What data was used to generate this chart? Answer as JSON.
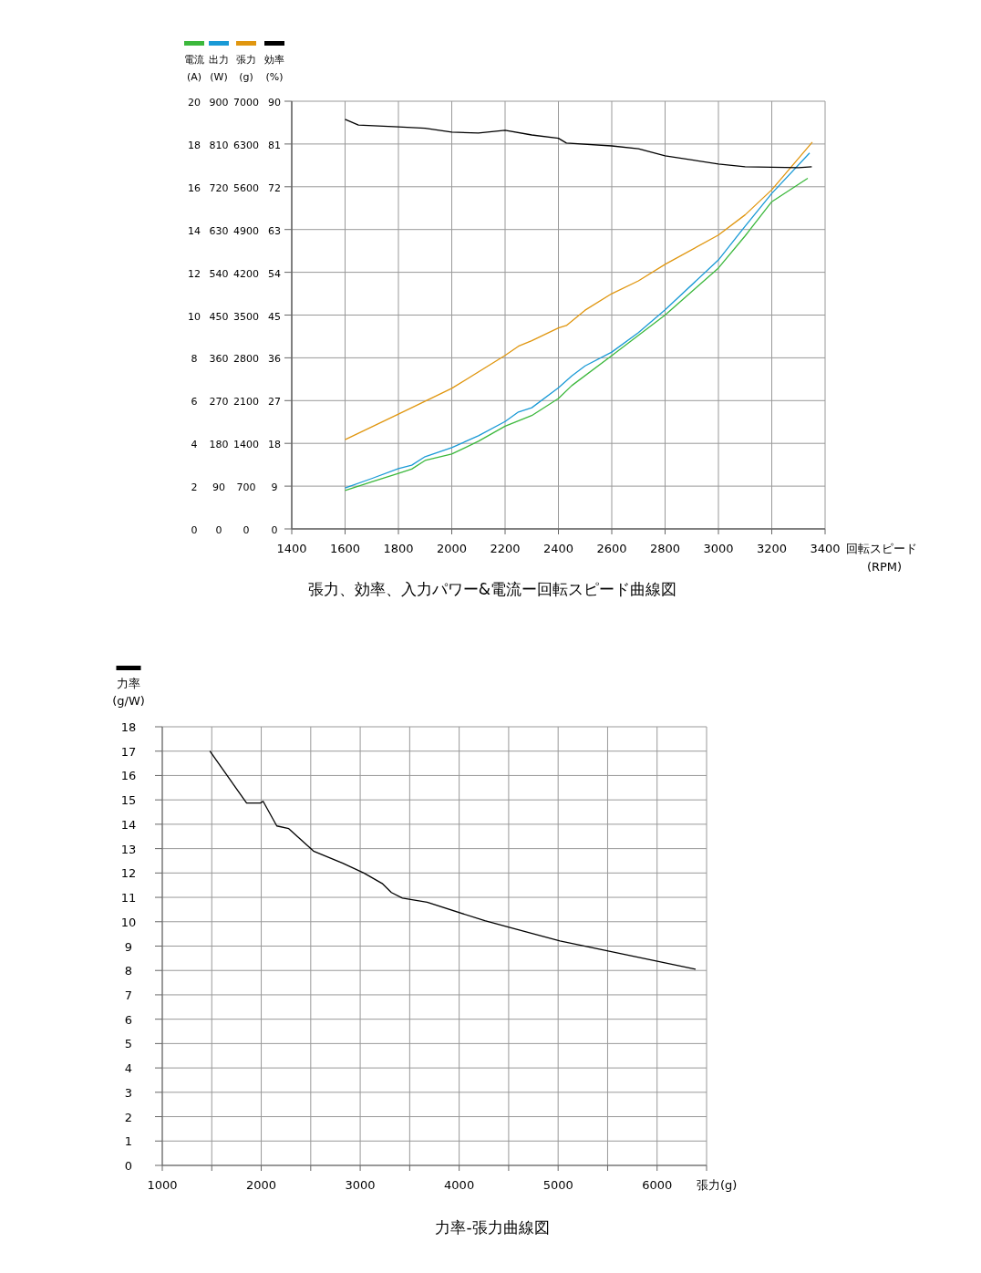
{
  "chart_data": [
    {
      "type": "line",
      "title": "張力、効率、入力パワー&電流ー回転スピード曲線図",
      "xlabel": "回転スピード\n(RPM)",
      "ylabel": "(%)",
      "y2label": "(g)",
      "y3label": "(W)",
      "xlim": [
        1400,
        3400
      ],
      "xticks": [
        1400,
        1600,
        1800,
        2000,
        2200,
        2400,
        2600,
        2800,
        3000,
        3200,
        3400
      ],
      "ylim": [
        0,
        90
      ],
      "yticks": [
        0,
        9,
        18,
        27,
        36,
        45,
        54,
        63,
        72,
        81,
        90
      ],
      "y2lim": [
        0,
        7000
      ],
      "y2ticks": [
        0,
        700,
        1400,
        2100,
        2800,
        3500,
        4200,
        4900,
        5600,
        6300,
        7000
      ],
      "y3lim": [
        0,
        900
      ],
      "y3ticks": [
        0,
        90,
        180,
        270,
        360,
        450,
        540,
        630,
        720,
        810,
        900
      ],
      "grid": true,
      "legend": "top left",
      "marker": "none",
      "line_style": "solid",
      "series": [
        {
          "name": "出力",
          "color": "#1a9ad6",
          "axis": "y3",
          "x": [
            1600,
            1700,
            1800,
            1850,
            1900,
            2000,
            2100,
            2200,
            2250,
            2300,
            2400,
            2450,
            2500,
            2600,
            2700,
            2800,
            3000,
            3100,
            3200,
            3342
          ],
          "values": [
            86,
            106,
            127,
            134,
            152,
            171,
            196,
            226,
            246,
            255,
            297,
            322,
            343,
            372,
            413,
            461,
            566,
            637,
            706,
            791
          ]
        },
        {
          "name": "張力",
          "color": "#e0960f",
          "axis": "y2",
          "x": [
            1600,
            1800,
            2000,
            2200,
            2250,
            2300,
            2400,
            2430,
            2500,
            2600,
            2700,
            2800,
            3000,
            3100,
            3200,
            3352
          ],
          "values": [
            1460,
            1880,
            2300,
            2840,
            2990,
            3080,
            3290,
            3330,
            3580,
            3850,
            4060,
            4330,
            4810,
            5140,
            5550,
            6330
          ]
        },
        {
          "name": "効率",
          "color": "#000000",
          "x": [
            1600,
            1650,
            1800,
            1900,
            2000,
            2100,
            2200,
            2300,
            2400,
            2430,
            2600,
            2700,
            2800,
            3000,
            3100,
            3300,
            3350
          ],
          "values": [
            86.2,
            85.0,
            84.6,
            84.3,
            83.5,
            83.3,
            83.9,
            82.9,
            82.2,
            81.2,
            80.6,
            80.0,
            78.5,
            76.8,
            76.2,
            76.0,
            76.2
          ]
        }
      ]
    },
    {
      "type": "line",
      "ylabel": "(A)",
      "xlim": [
        1400,
        3400
      ],
      "ylim": [
        0,
        20
      ],
      "yticks": [
        0,
        2,
        4,
        6,
        8,
        10,
        12,
        14,
        16,
        18,
        20
      ],
      "tick_labels": "y",
      "legend": "top left",
      "marker": "none",
      "line_style": "solid",
      "series": [
        {
          "name": "電流",
          "color": "#3cb83c",
          "x": [
            1600,
            1700,
            1800,
            1850,
            1900,
            2000,
            2100,
            2200,
            2300,
            2400,
            2450,
            2600,
            2800,
            3000,
            3100,
            3200,
            3335
          ],
          "values": [
            1.8,
            2.2,
            2.6,
            2.8,
            3.2,
            3.5,
            4.1,
            4.8,
            5.3,
            6.1,
            6.7,
            8.1,
            10.0,
            12.2,
            13.7,
            15.3,
            16.4
          ]
        }
      ]
    },
    {
      "type": "line",
      "title": "力率-張力曲線図",
      "xlabel": "張力(g)",
      "ylabel": "(g/W)",
      "xlim": [
        1000,
        6500
      ],
      "xticks": [
        1000,
        {
          "value": 1500,
          "label": null
        },
        2000,
        {
          "value": 2500,
          "label": null
        },
        3000,
        {
          "value": 3500,
          "label": null
        },
        4000,
        {
          "value": 4500,
          "label": null
        },
        5000,
        {
          "value": 5500,
          "label": null
        },
        6000,
        {
          "value": 6500,
          "label": null
        }
      ],
      "ylim": [
        0,
        18
      ],
      "yticks": [
        0,
        1,
        2,
        3,
        4,
        5,
        6,
        7,
        8,
        9,
        10,
        11,
        12,
        13,
        14,
        15,
        16,
        17,
        18
      ],
      "grid": true,
      "legend": "top left",
      "marker": "none",
      "line_style": "solid",
      "series": [
        {
          "name": "力率",
          "color": "#000000",
          "x": [
            1481,
            1852,
            1991,
            2019,
            2157,
            2278,
            2528,
            2824,
            3037,
            3222,
            3315,
            3426,
            3676,
            4259,
            5019,
            6389
          ],
          "values": [
            17.0,
            14.87,
            14.87,
            14.94,
            13.93,
            13.82,
            12.9,
            12.4,
            12.0,
            11.57,
            11.2,
            10.97,
            10.8,
            10.04,
            9.21,
            8.05
          ]
        }
      ]
    }
  ]
}
